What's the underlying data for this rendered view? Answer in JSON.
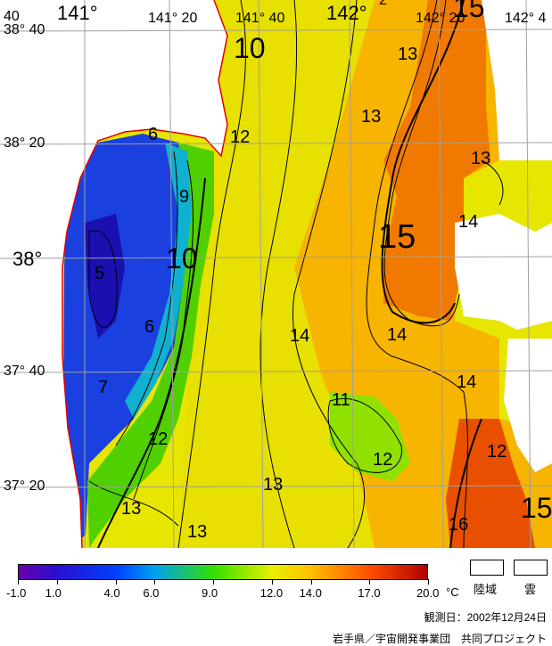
{
  "map": {
    "lat_labels": [
      "38° 40",
      "38° 20",
      "38°",
      "37° 40",
      "37° 20"
    ],
    "lon_labels": [
      "141°",
      "141° 20",
      "141° 40",
      "142°",
      "142° 20",
      "142° 4"
    ],
    "corner_label": "40",
    "top_partial_label": "2",
    "contour_labels": [
      "10",
      "6",
      "12",
      "9",
      "10",
      "5",
      "6",
      "7",
      "12",
      "13",
      "13",
      "13",
      "13",
      "15",
      "14",
      "14",
      "14",
      "11",
      "12",
      "13",
      "14",
      "12",
      "16",
      "15",
      "15",
      "13"
    ],
    "colors": {
      "land": "#ffffff",
      "coast": "#e00000",
      "grid": "#a0a0a0",
      "contour": "#000000"
    }
  },
  "colorbar": {
    "unit": "°C",
    "ticks": [
      "-1.0",
      "1.0",
      "4.0",
      "6.0",
      "9.0",
      "12.0",
      "14.0",
      "17.0",
      "20.0"
    ],
    "tick_values": [
      -1,
      1,
      4,
      6,
      9,
      12,
      14,
      17,
      20
    ],
    "stops": [
      {
        "value": -1,
        "color": "#6a00b0"
      },
      {
        "value": 1,
        "color": "#2a10d0"
      },
      {
        "value": 4,
        "color": "#0040ff"
      },
      {
        "value": 6,
        "color": "#00a0f0"
      },
      {
        "value": 9,
        "color": "#30e000"
      },
      {
        "value": 12,
        "color": "#e8f000"
      },
      {
        "value": 14,
        "color": "#ffc000"
      },
      {
        "value": 17,
        "color": "#ff5000"
      },
      {
        "value": 20,
        "color": "#b00000"
      }
    ]
  },
  "legend": {
    "land_label": "陸域",
    "cloud_label": "雲"
  },
  "footer": {
    "date": "観測日：2002年12月24日",
    "credit": "岩手県／宇宙開発事業団　共同プロジェクト"
  }
}
